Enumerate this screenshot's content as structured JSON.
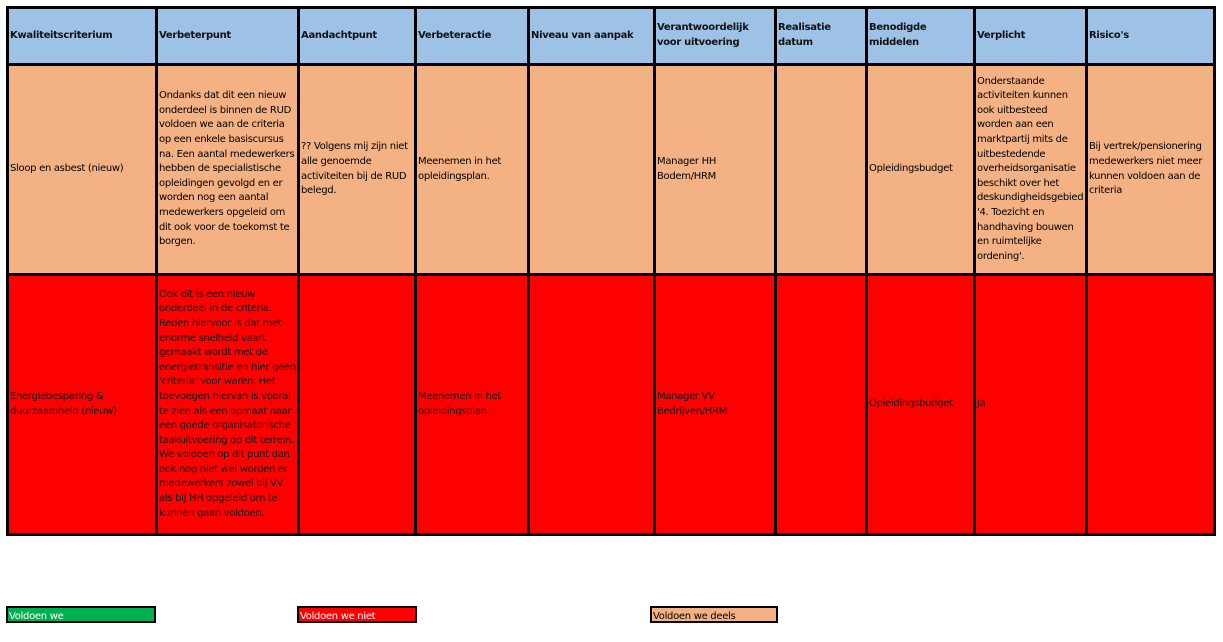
{
  "table": {
    "headers": [
      "Kwaliteitscriterium",
      "Verbeterpunt",
      "Aandachtpunt",
      "Verbeteractie",
      "Niveau van aanpak",
      "Verantwoordelijk voor uitvoering",
      "Realisatie datum",
      "Benodigde middelen",
      "Verplicht",
      "Risico's"
    ],
    "rows": [
      {
        "status": "deels",
        "cells": [
          "Sloop en asbest (nieuw)",
          "Ondanks dat dit een nieuw onderdeel is binnen de RUD voldoen we aan de criteria op een enkele basiscursus na. Een aantal medewerkers hebben de specialistische opleidingen gevolgd en er worden nog een aantal medewerkers opgeleid om dit ook voor de toekomst te borgen.",
          "?? Volgens mij zijn niet alle genoemde activiteiten bij de RUD belegd.",
          "Meenemen in het opleidingsplan.",
          "",
          "Manager HH Bodem/HRM",
          "",
          "Opleidingsbudget",
          "Onderstaande activiteiten kunnen ook uitbesteed worden aan een marktpartij mits de uitbestedende overheidsorganisatie beschikt over het deskundigheidsgebied '4. Toezicht en handhaving bouwen en ruimtelijke ordening'.",
          "Bij vertrek/pensionering medewerkers niet meer kunnen voldoen aan de criteria"
        ]
      },
      {
        "status": "niet",
        "cells": [
          "Energiebesparing & duurzaamheid (nieuw)",
          "Ook dit is een nieuw onderdeel in de criteria. Reden hiervoor is dat met enorme snelheid vaart gemaakt wordt met de energietransitie en hier geen 'criteria' voor waren. Het toevoegen hiervan is vooral te zien als een opmaat naar een goede organisatorische taakuitvoering op dit terrein. We voldoen op dit punt dan ook nog niet wel worden er medewerkers zowel bij VV als bij HH opgeleid om te kunnen gaan voldoen.",
          "",
          "Meenemen in het opleidingsplan.",
          "",
          "Manager VV Bedrijven/HRM",
          "",
          "Opleidingsbudget",
          "Ja",
          ""
        ]
      }
    ]
  },
  "legend": {
    "green": "Voldoen we",
    "red": "Voldoen we niet",
    "orange": "Voldoen we deels"
  },
  "colors": {
    "header": "#9ec2e5",
    "voldoen_we": "#00b050",
    "voldoen_we_niet": "#ff0000",
    "voldoen_we_deels": "#f4b183"
  }
}
